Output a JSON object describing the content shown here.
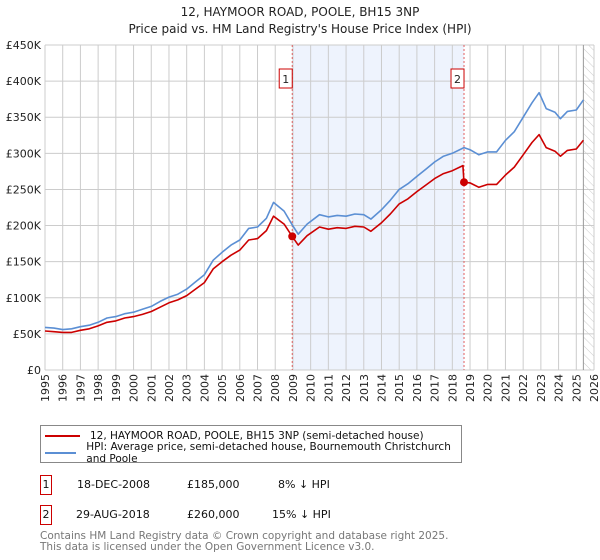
{
  "chart_data": {
    "type": "line",
    "title": "12, HAYMOOR ROAD, POOLE, BH15 3NP",
    "subtitle": "Price paid vs. HM Land Registry's House Price Index (HPI)",
    "xlim": [
      1995,
      2026
    ],
    "ylim": [
      0,
      450000
    ],
    "x_ticks": [
      "1995",
      "1996",
      "1997",
      "1998",
      "1999",
      "2000",
      "2001",
      "2002",
      "2003",
      "2004",
      "2005",
      "2006",
      "2007",
      "2008",
      "2009",
      "2010",
      "2011",
      "2012",
      "2013",
      "2014",
      "2015",
      "2016",
      "2017",
      "2018",
      "2019",
      "2020",
      "2021",
      "2022",
      "2023",
      "2024",
      "2025",
      "2026"
    ],
    "y_ticks": [
      {
        "v": 0,
        "label": "£0"
      },
      {
        "v": 50000,
        "label": "£50K"
      },
      {
        "v": 100000,
        "label": "£100K"
      },
      {
        "v": 150000,
        "label": "£150K"
      },
      {
        "v": 200000,
        "label": "£200K"
      },
      {
        "v": 250000,
        "label": "£250K"
      },
      {
        "v": 300000,
        "label": "£300K"
      },
      {
        "v": 350000,
        "label": "£350K"
      },
      {
        "v": 400000,
        "label": "£400K"
      },
      {
        "v": 450000,
        "label": "£450K"
      }
    ],
    "grid": true,
    "shaded_range": [
      2008.96,
      2018.66
    ],
    "forecast_hatch_from": 2025.4,
    "series": [
      {
        "name": "12, HAYMOOR ROAD, POOLE, BH15 3NP (semi-detached house)",
        "color": "#cc0000",
        "x": [
          1995,
          1995.5,
          1996,
          1996.5,
          1997,
          1997.5,
          1998,
          1998.5,
          1999,
          1999.5,
          2000,
          2000.5,
          2001,
          2001.5,
          2002,
          2002.5,
          2003,
          2003.5,
          2004,
          2004.5,
          2005,
          2005.5,
          2006,
          2006.5,
          2007,
          2007.5,
          2007.9,
          2008.5,
          2008.96,
          2009.3,
          2009.8,
          2010.5,
          2011,
          2011.5,
          2012,
          2012.5,
          2013,
          2013.4,
          2014,
          2014.5,
          2015,
          2015.5,
          2016,
          2016.5,
          2017,
          2017.5,
          2018,
          2018.6,
          2018.66,
          2019,
          2019.5,
          2020,
          2020.5,
          2021,
          2021.5,
          2022,
          2022.5,
          2022.9,
          2023.3,
          2023.8,
          2024.1,
          2024.5,
          2025,
          2025.4
        ],
        "values": [
          54,
          53,
          52,
          52,
          55,
          57,
          61,
          66,
          68,
          72,
          74,
          77,
          81,
          87,
          93,
          97,
          103,
          112,
          121,
          140,
          150,
          159,
          166,
          180,
          182,
          193,
          213,
          202,
          185,
          173,
          186,
          198,
          195,
          197,
          196,
          199,
          198,
          192,
          204,
          216,
          230,
          237,
          247,
          256,
          265,
          272,
          276,
          283,
          260,
          259,
          253,
          257,
          257,
          270,
          281,
          298,
          315,
          326,
          308,
          303,
          296,
          304,
          306,
          318
        ]
      },
      {
        "name": "HPI: Average price, semi-detached house, Bournemouth Christchurch and Poole",
        "color": "#5b8fd4",
        "x": [
          1995,
          1995.5,
          1996,
          1996.5,
          1997,
          1997.5,
          1998,
          1998.5,
          1999,
          1999.5,
          2000,
          2000.5,
          2001,
          2001.5,
          2002,
          2002.5,
          2003,
          2003.5,
          2004,
          2004.5,
          2005,
          2005.5,
          2006,
          2006.5,
          2007,
          2007.5,
          2007.9,
          2008.5,
          2008.96,
          2009.3,
          2009.8,
          2010.5,
          2011,
          2011.5,
          2012,
          2012.5,
          2013,
          2013.4,
          2014,
          2014.5,
          2015,
          2015.5,
          2016,
          2016.5,
          2017,
          2017.5,
          2018,
          2018.66,
          2019,
          2019.5,
          2020,
          2020.5,
          2021,
          2021.5,
          2022,
          2022.5,
          2022.9,
          2023.3,
          2023.8,
          2024.1,
          2024.5,
          2025,
          2025.4
        ],
        "values": [
          59,
          58,
          56,
          57,
          60,
          62,
          66,
          72,
          74,
          78,
          80,
          84,
          88,
          95,
          101,
          105,
          112,
          122,
          132,
          152,
          163,
          173,
          180,
          196,
          198,
          210,
          232,
          220,
          201,
          188,
          202,
          215,
          212,
          214,
          213,
          216,
          215,
          209,
          222,
          235,
          250,
          258,
          268,
          278,
          288,
          296,
          300,
          308,
          305,
          298,
          302,
          302,
          318,
          330,
          350,
          370,
          384,
          362,
          357,
          348,
          358,
          360,
          374
        ]
      }
    ],
    "value_unit": "thousands GBP",
    "sales": [
      {
        "id": "1",
        "x": 2008.96,
        "value": 185,
        "date": "18-DEC-2008",
        "price": "£185,000",
        "hpi_diff": "8% ↓ HPI"
      },
      {
        "id": "2",
        "x": 2018.66,
        "value": 260,
        "date": "29-AUG-2018",
        "price": "£260,000",
        "hpi_diff": "15% ↓ HPI"
      }
    ]
  },
  "footer": {
    "line1": "Contains HM Land Registry data © Crown copyright and database right 2025.",
    "line2": "This data is licensed under the Open Government Licence v3.0."
  }
}
